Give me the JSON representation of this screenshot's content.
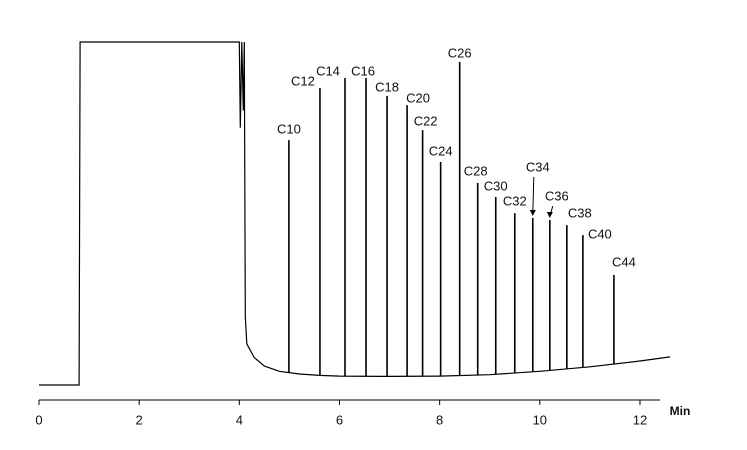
{
  "chart_data": {
    "type": "line",
    "xlabel": "Min",
    "xlim": [
      0,
      12.4
    ],
    "xticks": [
      0,
      2,
      4,
      6,
      8,
      10,
      12
    ],
    "ylim": [
      0,
      100
    ],
    "color": "#000000",
    "x": [
      0,
      0.8,
      0.82,
      4.0,
      4.02,
      4.05,
      4.08,
      4.1,
      4.12,
      4.15,
      4.3,
      4.5,
      4.8,
      5.2,
      5.6,
      6,
      7,
      8,
      9,
      10,
      11,
      12,
      12.6
    ],
    "values": [
      0,
      0,
      100,
      100,
      75,
      100,
      80,
      100,
      20,
      12,
      8,
      5.5,
      4,
      3.2,
      2.8,
      2.6,
      2.5,
      2.6,
      3.0,
      4.0,
      5.3,
      7.0,
      8.2
    ],
    "peaks": {
      "labels": [
        "C10",
        "C12",
        "C14",
        "C16",
        "C18",
        "C20",
        "C22",
        "C24",
        "C26",
        "C28",
        "C30",
        "C32",
        "C34",
        "C36",
        "C38",
        "C40",
        "C44"
      ],
      "x": [
        4.99,
        5.61,
        6.11,
        6.53,
        6.95,
        7.35,
        7.66,
        8.02,
        8.4,
        8.76,
        9.12,
        9.5,
        9.86,
        10.2,
        10.54,
        10.86,
        11.48
      ],
      "values": [
        71.4,
        86.6,
        89.5,
        89.5,
        84.3,
        81.6,
        74.3,
        65.0,
        94.2,
        58.9,
        54.8,
        50.1,
        48.7,
        48.1,
        46.6,
        43.7,
        32.1
      ]
    }
  }
}
